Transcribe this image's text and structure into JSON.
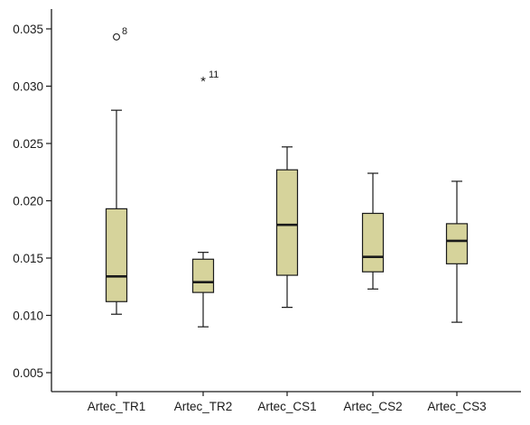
{
  "chart_data": {
    "type": "boxplot",
    "title": "",
    "xlabel": "",
    "ylabel": "",
    "ylim": [
      0.002,
      0.037
    ],
    "y_ticks": [
      "0.005",
      "0.010",
      "0.015",
      "0.020",
      "0.025",
      "0.030",
      "0.035"
    ],
    "y_tick_values": [
      0.005,
      0.01,
      0.015,
      0.02,
      0.025,
      0.03,
      0.035
    ],
    "grid": false,
    "legend": "none",
    "box_fill": "#d6d39b",
    "line_color": "#1a1a1a",
    "categories": [
      "Artec_TR1",
      "Artec_TR2",
      "Artec_CS1",
      "Artec_CS2",
      "Artec_CS3"
    ],
    "boxes": [
      {
        "whisker_low": 0.0101,
        "q1": 0.0112,
        "median": 0.0134,
        "q3": 0.0193,
        "whisker_high": 0.0279
      },
      {
        "whisker_low": 0.009,
        "q1": 0.012,
        "median": 0.0129,
        "q3": 0.0149,
        "whisker_high": 0.0155
      },
      {
        "whisker_low": 0.0107,
        "q1": 0.0135,
        "median": 0.0179,
        "q3": 0.0227,
        "whisker_high": 0.0247
      },
      {
        "whisker_low": 0.0123,
        "q1": 0.0138,
        "median": 0.0151,
        "q3": 0.0189,
        "whisker_high": 0.0224
      },
      {
        "whisker_low": 0.0094,
        "q1": 0.0145,
        "median": 0.0165,
        "q3": 0.018,
        "whisker_high": 0.0217
      }
    ],
    "outliers": [
      {
        "category": "Artec_TR1",
        "value": 0.0343,
        "marker": "circle",
        "label": "8"
      },
      {
        "category": "Artec_TR2",
        "value": 0.0305,
        "marker": "star",
        "label": "11"
      }
    ]
  }
}
